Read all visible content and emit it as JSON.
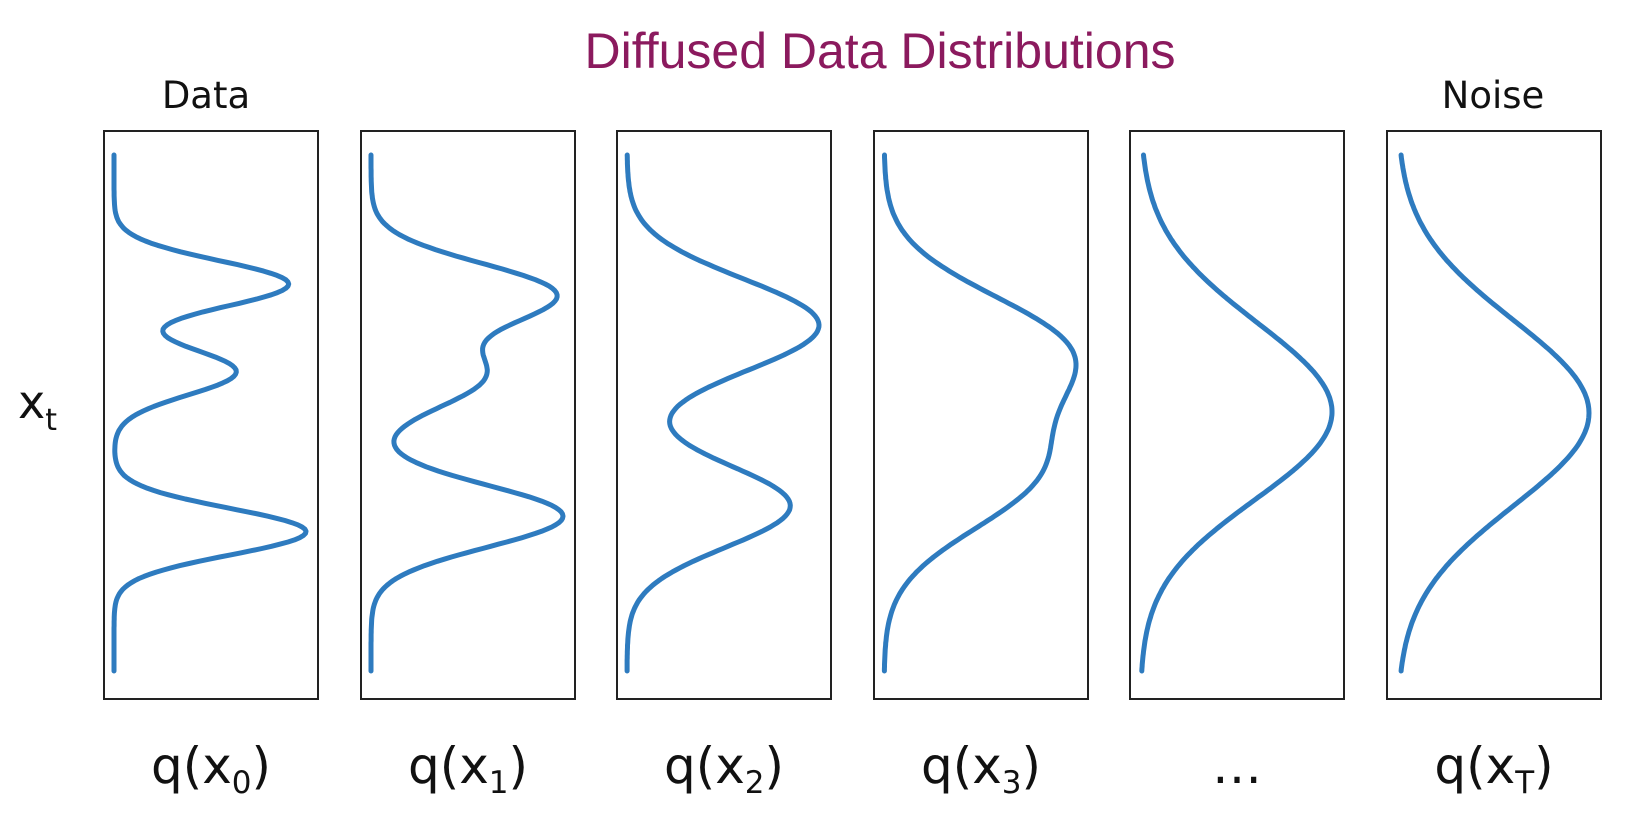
{
  "title": "Diffused Data Distributions",
  "left_label": "Data",
  "right_label": "Noise",
  "axis_label": {
    "main": "x",
    "sub": "t"
  },
  "curve_color": "#2e7bbf",
  "panels": [
    {
      "name": "panel-x0",
      "caption": {
        "prefix": "q(x",
        "sub": "0",
        "suffix": ")"
      },
      "components": [
        {
          "mean": 0.25,
          "sd": 0.045,
          "weight": 1.0
        },
        {
          "mean": 0.42,
          "sd": 0.045,
          "weight": 0.7
        },
        {
          "mean": 0.73,
          "sd": 0.045,
          "weight": 1.1
        }
      ]
    },
    {
      "name": "panel-x1",
      "caption": {
        "prefix": "q(x",
        "sub": "1",
        "suffix": ")"
      },
      "components": [
        {
          "mean": 0.27,
          "sd": 0.06,
          "weight": 1.0
        },
        {
          "mean": 0.43,
          "sd": 0.06,
          "weight": 0.6
        },
        {
          "mean": 0.7,
          "sd": 0.06,
          "weight": 1.05
        }
      ]
    },
    {
      "name": "panel-x2",
      "caption": {
        "prefix": "q(x",
        "sub": "2",
        "suffix": ")"
      },
      "components": [
        {
          "mean": 0.33,
          "sd": 0.09,
          "weight": 1.0
        },
        {
          "mean": 0.68,
          "sd": 0.08,
          "weight": 0.85
        }
      ]
    },
    {
      "name": "panel-x3",
      "caption": {
        "prefix": "q(x",
        "sub": "3",
        "suffix": ")"
      },
      "components": [
        {
          "mean": 0.38,
          "sd": 0.11,
          "weight": 1.0
        },
        {
          "mean": 0.62,
          "sd": 0.11,
          "weight": 0.8
        }
      ]
    },
    {
      "name": "panel-ellipsis",
      "caption": {
        "prefix": "…",
        "sub": "",
        "suffix": ""
      },
      "components": [
        {
          "mean": 0.46,
          "sd": 0.17,
          "weight": 1.0
        },
        {
          "mean": 0.56,
          "sd": 0.15,
          "weight": 0.5
        }
      ]
    },
    {
      "name": "panel-xT",
      "caption": {
        "prefix": "q(x",
        "sub": "T",
        "suffix": ")"
      },
      "components": [
        {
          "mean": 0.5,
          "sd": 0.18,
          "weight": 1.0
        }
      ]
    }
  ]
}
